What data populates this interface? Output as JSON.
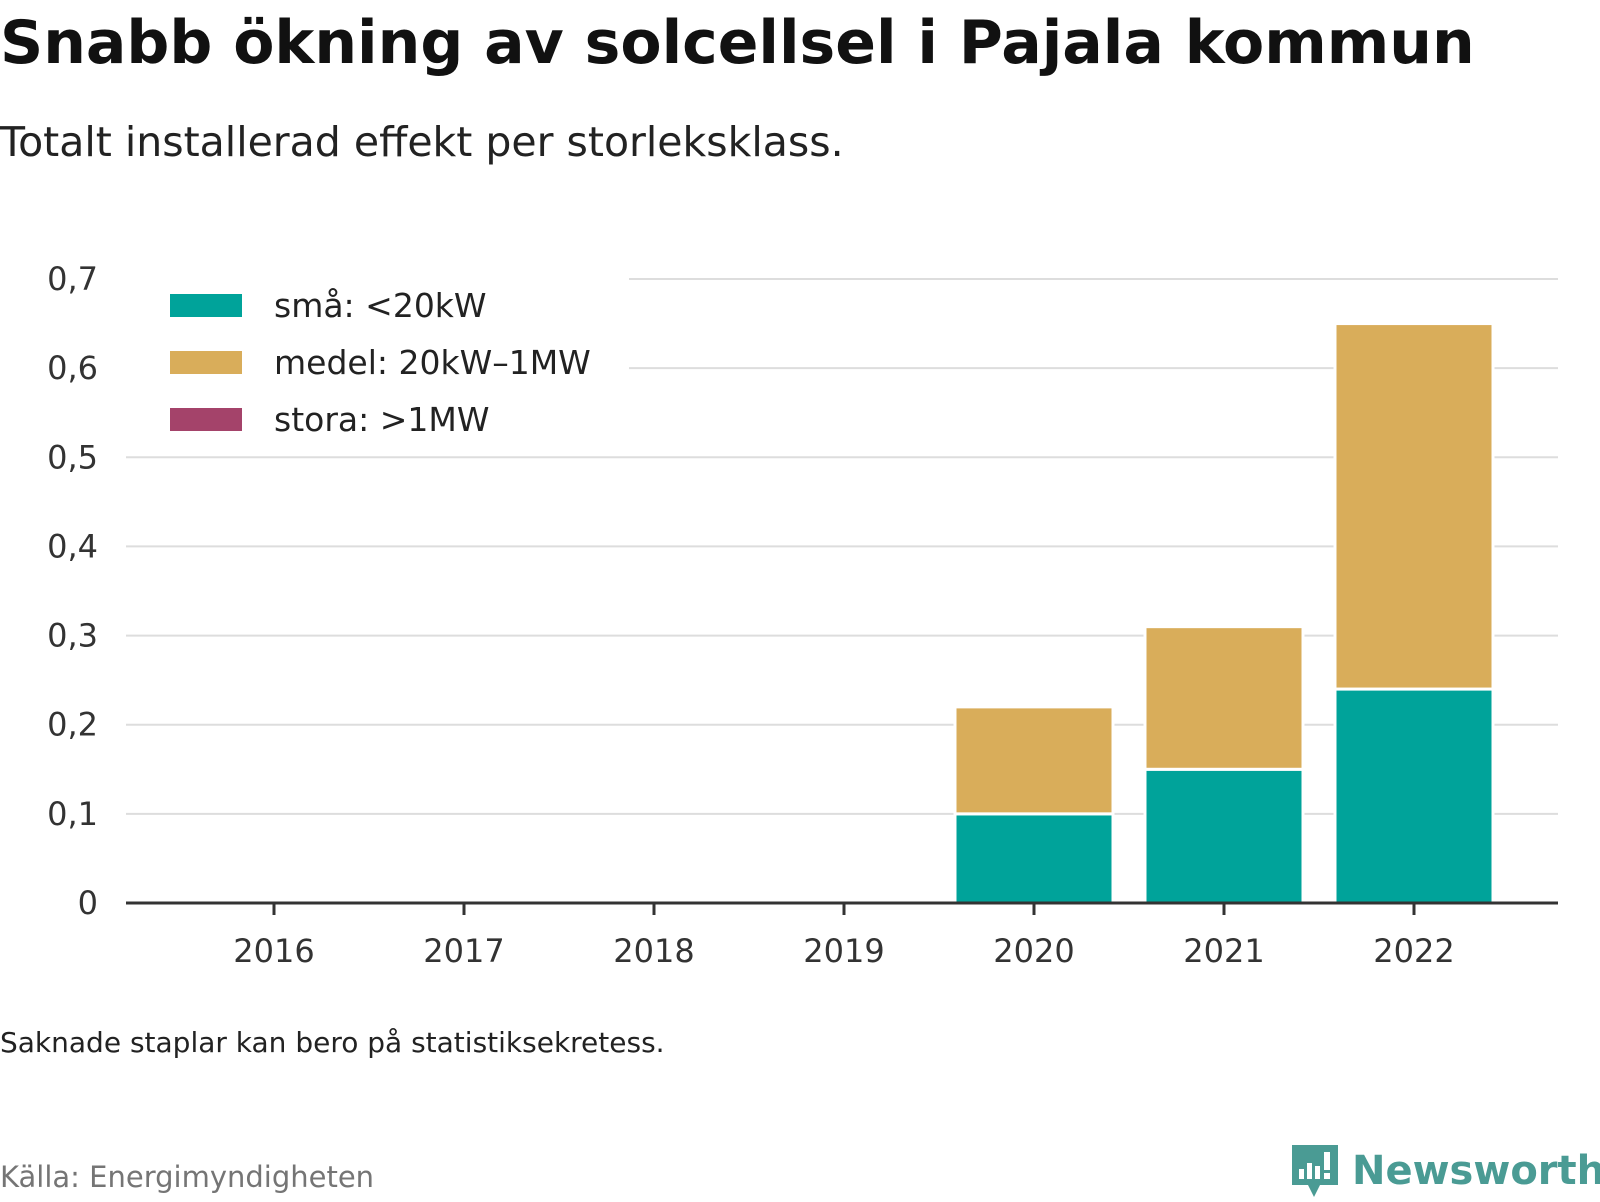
{
  "header": {
    "title": "Snabb ökning av solcellsel i Pajala kommun",
    "subtitle": "Totalt installerad effekt per storleksklass."
  },
  "footer": {
    "note": "Saknade staplar kan bero på statistiksekretess.",
    "source": "Källa: Energimyndigheten",
    "brand": "Newsworthy"
  },
  "colors": {
    "small": "#00a39a",
    "medium": "#d9ad5a",
    "large": "#a4436a",
    "grid": "#dddddd",
    "axis": "#333333",
    "brand": "#4a9b94"
  },
  "chart_data": {
    "type": "bar",
    "stacked": true,
    "categories": [
      "2016",
      "2017",
      "2018",
      "2019",
      "2020",
      "2021",
      "2022"
    ],
    "series": [
      {
        "name": "små: <20kW",
        "color": "#00a39a",
        "values": [
          0,
          0,
          0,
          0,
          0.1,
          0.15,
          0.24
        ]
      },
      {
        "name": "medel: 20kW–1MW",
        "color": "#d9ad5a",
        "values": [
          0,
          0,
          0,
          0,
          0.12,
          0.16,
          0.41
        ]
      },
      {
        "name": "stora: >1MW",
        "color": "#a4436a",
        "values": [
          0,
          0,
          0,
          0,
          0,
          0,
          0
        ]
      }
    ],
    "ylim": [
      0,
      0.7
    ],
    "yticks": [
      0,
      0.1,
      0.2,
      0.3,
      0.4,
      0.5,
      0.6,
      0.7
    ],
    "ytick_labels": [
      "0",
      "0,1",
      "0,2",
      "0,3",
      "0,4",
      "0,5",
      "0,6",
      "0,7"
    ],
    "xlabel": "",
    "ylabel": "",
    "grid": true,
    "legend_position": "top-left"
  }
}
